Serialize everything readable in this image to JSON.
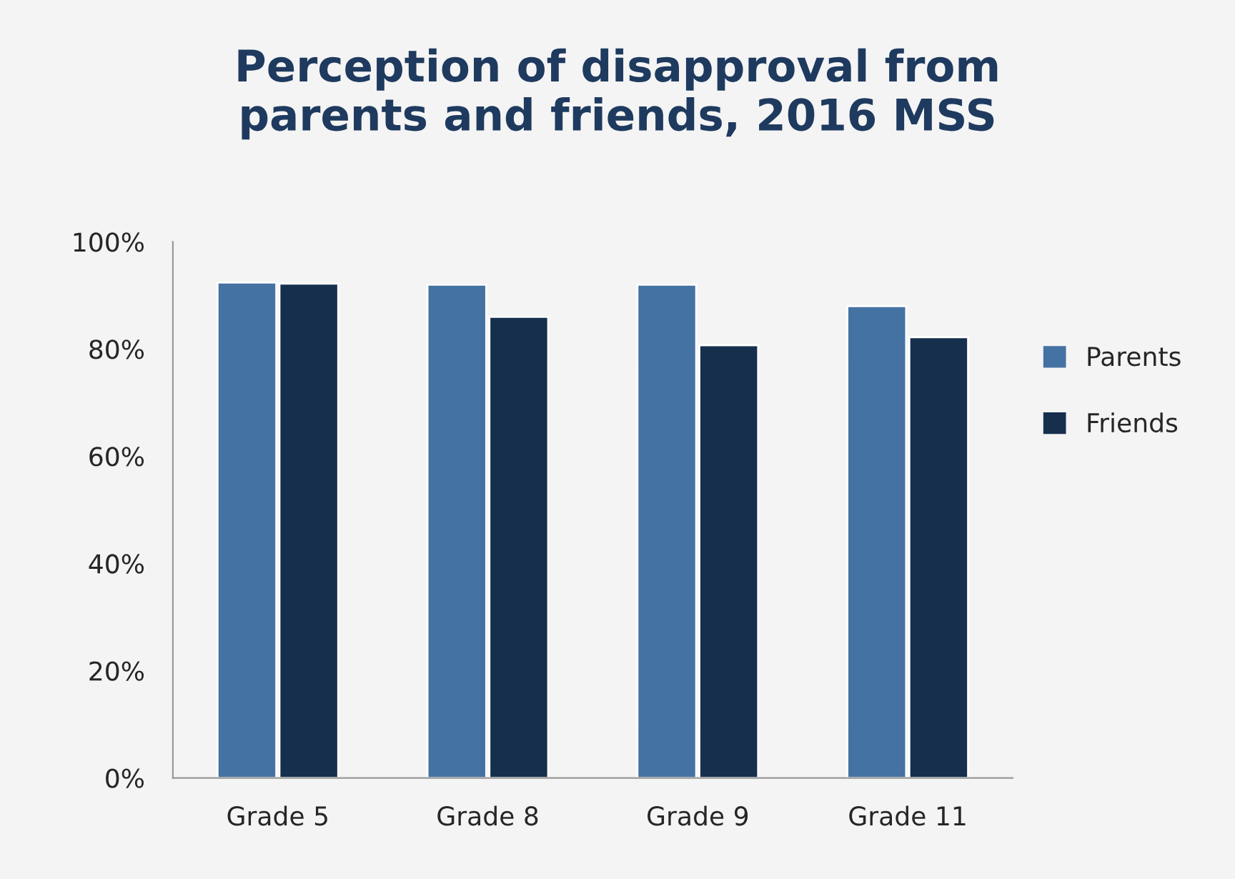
{
  "chart_data": {
    "type": "bar",
    "title": "Perception of disapproval from\nparents and friends, 2016 MSS",
    "categories": [
      "Grade 5",
      "Grade 8",
      "Grade 9",
      "Grade 11"
    ],
    "series": [
      {
        "name": "Parents",
        "color": "#4472a2",
        "values": [
          92.4,
          92,
          92,
          88
        ]
      },
      {
        "name": "Friends",
        "color": "#152f4d",
        "values": [
          92.2,
          86,
          80.7,
          82.2
        ]
      }
    ],
    "ylim": [
      0,
      100
    ],
    "yticks": [
      {
        "value": 0,
        "label": "0%"
      },
      {
        "value": 20,
        "label": "20%"
      },
      {
        "value": 40,
        "label": "40%"
      },
      {
        "value": 60,
        "label": "60%"
      },
      {
        "value": 80,
        "label": "80%"
      },
      {
        "value": 100,
        "label": "100%"
      }
    ],
    "grid": false,
    "legend": "right"
  }
}
